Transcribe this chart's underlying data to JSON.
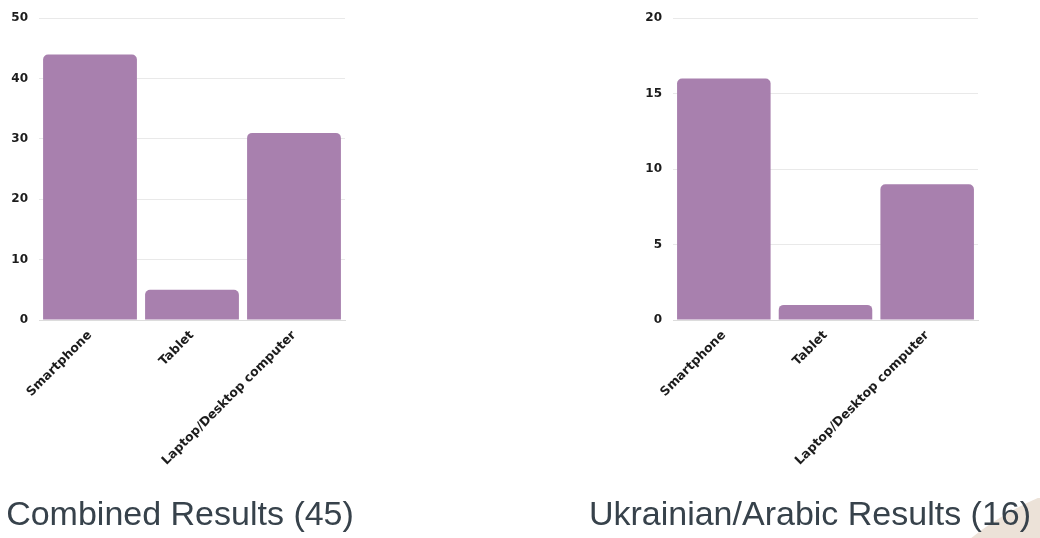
{
  "chart_data": [
    {
      "type": "bar",
      "title": "Combined Results (45)",
      "categories": [
        "Smartphone",
        "Tablet",
        "Laptop/Desktop computer"
      ],
      "values": [
        44,
        5,
        31
      ],
      "color": "#a880ae",
      "ylim": [
        0,
        50
      ],
      "yticks": [
        0,
        10,
        20,
        30,
        40,
        50
      ],
      "grid": "y"
    },
    {
      "type": "bar",
      "title": "Ukrainian/Arabic Results (16)",
      "categories": [
        "Smartphone",
        "Tablet",
        "Laptop/Desktop computer"
      ],
      "values": [
        16,
        1,
        9
      ],
      "color": "#a880ae",
      "ylim": [
        0,
        20
      ],
      "yticks": [
        0,
        5,
        10,
        15,
        20
      ],
      "grid": "y"
    }
  ]
}
